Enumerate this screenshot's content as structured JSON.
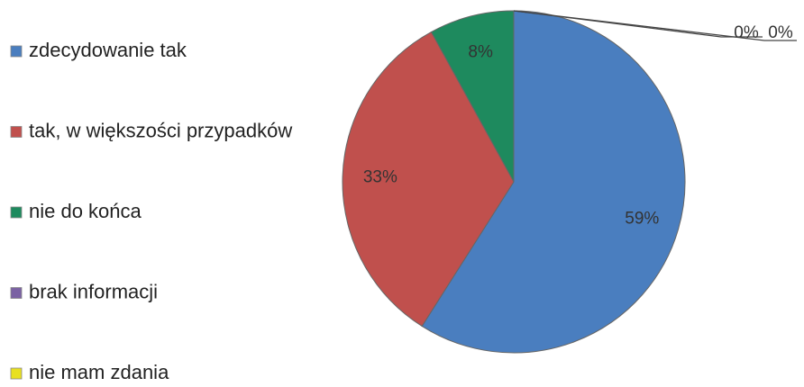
{
  "chart_data": {
    "type": "pie",
    "categories": [
      "zdecydowanie tak",
      "tak, w większości przypadków",
      "nie do końca",
      "brak informacji",
      "nie mam zdania"
    ],
    "values": [
      59,
      33,
      8,
      0,
      0
    ],
    "value_labels": [
      "59%",
      "33%",
      "8%",
      "0%",
      "0%"
    ],
    "colors": [
      "#4a7ebf",
      "#c0504d",
      "#1e8a5e",
      "#7b62a3",
      "#e8e020"
    ],
    "legend": "left"
  }
}
